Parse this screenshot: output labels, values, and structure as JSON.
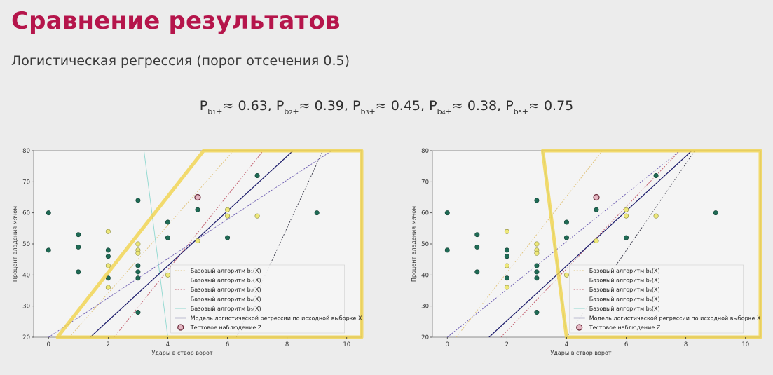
{
  "slide": {
    "title": "Сравнение результатов",
    "subtitle": "Логистическая регрессия (порог отсечения 0.5)",
    "probabilities": [
      {
        "label": "P",
        "sub": "b",
        "idx": "1",
        "sign": "+",
        "value": "≈ 0.63"
      },
      {
        "label": "P",
        "sub": "b",
        "idx": "2",
        "sign": "+",
        "value": "≈ 0.39"
      },
      {
        "label": "P",
        "sub": "b",
        "idx": "3",
        "sign": "+",
        "value": "≈ 0.45"
      },
      {
        "label": "P",
        "sub": "b",
        "idx": "4",
        "sign": "+",
        "value": "≈ 0.38"
      },
      {
        "label": "P",
        "sub": "b",
        "idx": "5",
        "sign": "+",
        "value": "≈ 0.75"
      }
    ]
  },
  "chart_data": [
    {
      "type": "scatter",
      "xlabel": "Удары в створ ворот",
      "ylabel": "Процент владения мячом",
      "xlim": [
        -0.5,
        10.5
      ],
      "ylim": [
        20,
        80
      ],
      "xticks": [
        0,
        2,
        4,
        6,
        8,
        10
      ],
      "yticks": [
        20,
        30,
        40,
        50,
        60,
        70,
        80
      ],
      "legend_position": "lower-right",
      "points_green": [
        [
          0,
          60
        ],
        [
          0,
          48
        ],
        [
          1,
          53
        ],
        [
          1,
          49
        ],
        [
          1,
          41
        ],
        [
          2,
          48
        ],
        [
          2,
          46
        ],
        [
          2,
          39
        ],
        [
          3,
          64
        ],
        [
          3,
          43
        ],
        [
          3,
          41
        ],
        [
          3,
          39
        ],
        [
          3,
          28
        ],
        [
          4,
          57
        ],
        [
          4,
          52
        ],
        [
          5,
          61
        ],
        [
          6,
          52
        ],
        [
          7,
          72
        ],
        [
          9,
          60
        ]
      ],
      "points_yellow": [
        [
          2,
          54
        ],
        [
          2,
          43
        ],
        [
          2,
          36
        ],
        [
          3,
          50
        ],
        [
          3,
          48
        ],
        [
          3,
          47
        ],
        [
          4,
          40
        ],
        [
          5,
          51
        ],
        [
          6,
          61
        ],
        [
          6,
          59
        ],
        [
          7,
          59
        ]
      ],
      "test_point": [
        5,
        65
      ],
      "lines": [
        {
          "name": "Базовый алгоритм b₁(X)",
          "color": "#e0c27a",
          "dash": "2,2",
          "pts": [
            [
              0.7,
              20
            ],
            [
              6.2,
              80
            ]
          ]
        },
        {
          "name": "Базовый алгоритм b₂(X)",
          "color": "#3a3a4a",
          "dash": "2,2",
          "pts": [
            [
              6.3,
              20
            ],
            [
              9.2,
              80
            ]
          ]
        },
        {
          "name": "Базовый алгоритм b₃(X)",
          "color": "#c05a6a",
          "dash": "2,2",
          "pts": [
            [
              2.2,
              20
            ],
            [
              7.2,
              80
            ]
          ]
        },
        {
          "name": "Базовый алгоритм b₄(X)",
          "color": "#6a5ab0",
          "dash": "2,2",
          "pts": [
            [
              0,
              20
            ],
            [
              9.5,
              80
            ]
          ]
        },
        {
          "name": "Базовый алгоритм b₅(X)",
          "color": "#8fd8d0",
          "dash": "none",
          "pts": [
            [
              3.2,
              80
            ],
            [
              4,
              20
            ]
          ]
        },
        {
          "name": "Модель логистической регрессии по исходной выборке X",
          "color": "#1a1a6a",
          "dash": "none",
          "pts": [
            [
              1.4,
              20
            ],
            [
              8.2,
              80
            ]
          ]
        }
      ],
      "test_label": "Тестовое наблюдение Z",
      "highlight_region": [
        [
          0.3,
          20
        ],
        [
          5.2,
          80
        ],
        [
          10.5,
          80
        ],
        [
          10.5,
          20
        ]
      ]
    },
    {
      "type": "scatter",
      "xlabel": "Удары в створ ворот",
      "ylabel": "Процент владения мячом",
      "xlim": [
        -0.5,
        10.5
      ],
      "ylim": [
        20,
        80
      ],
      "xticks": [
        0,
        2,
        4,
        6,
        8,
        10
      ],
      "yticks": [
        20,
        30,
        40,
        50,
        60,
        70,
        80
      ],
      "legend_position": "lower-right",
      "points_green": [
        [
          0,
          60
        ],
        [
          0,
          48
        ],
        [
          1,
          53
        ],
        [
          1,
          49
        ],
        [
          1,
          41
        ],
        [
          2,
          48
        ],
        [
          2,
          46
        ],
        [
          2,
          39
        ],
        [
          3,
          64
        ],
        [
          3,
          43
        ],
        [
          3,
          41
        ],
        [
          3,
          39
        ],
        [
          3,
          28
        ],
        [
          4,
          57
        ],
        [
          4,
          52
        ],
        [
          5,
          61
        ],
        [
          6,
          52
        ],
        [
          7,
          72
        ],
        [
          9,
          60
        ]
      ],
      "points_yellow": [
        [
          2,
          54
        ],
        [
          2,
          43
        ],
        [
          2,
          36
        ],
        [
          3,
          50
        ],
        [
          3,
          48
        ],
        [
          3,
          47
        ],
        [
          4,
          40
        ],
        [
          5,
          51
        ],
        [
          6,
          61
        ],
        [
          6,
          59
        ],
        [
          7,
          59
        ]
      ],
      "test_point": [
        5,
        65
      ],
      "lines": [
        {
          "name": "Базовый алгоритм b₁(X)",
          "color": "#e0c27a",
          "dash": "2,2",
          "pts": [
            [
              0.3,
              20
            ],
            [
              5.2,
              80
            ]
          ]
        },
        {
          "name": "Базовый алгоритм b₂(X)",
          "color": "#3a3a4a",
          "dash": "2,2",
          "pts": [
            [
              4,
              20
            ],
            [
              8.3,
              80
            ]
          ]
        },
        {
          "name": "Базовый алгоритм b₃(X)",
          "color": "#c05a6a",
          "dash": "2,2",
          "pts": [
            [
              1.8,
              20
            ],
            [
              7.8,
              80
            ]
          ]
        },
        {
          "name": "Базовый алгоритм b₄(X)",
          "color": "#6a5ab0",
          "dash": "2,2",
          "pts": [
            [
              0,
              20
            ],
            [
              7.8,
              80
            ]
          ]
        },
        {
          "name": "Базовый алгоритм b₅(X)",
          "color": "#8fd8d0",
          "dash": "none",
          "pts": [
            [
              3.2,
              80
            ],
            [
              4,
              20
            ]
          ]
        },
        {
          "name": "Модель логистической регрессии по исходной выборке X",
          "color": "#1a1a6a",
          "dash": "none",
          "pts": [
            [
              1.4,
              20
            ],
            [
              8.2,
              80
            ]
          ]
        }
      ],
      "test_label": "Тестовое наблюдение Z",
      "highlight_region": [
        [
          3.2,
          80
        ],
        [
          10.5,
          80
        ],
        [
          10.5,
          20
        ],
        [
          4,
          20
        ]
      ]
    }
  ]
}
